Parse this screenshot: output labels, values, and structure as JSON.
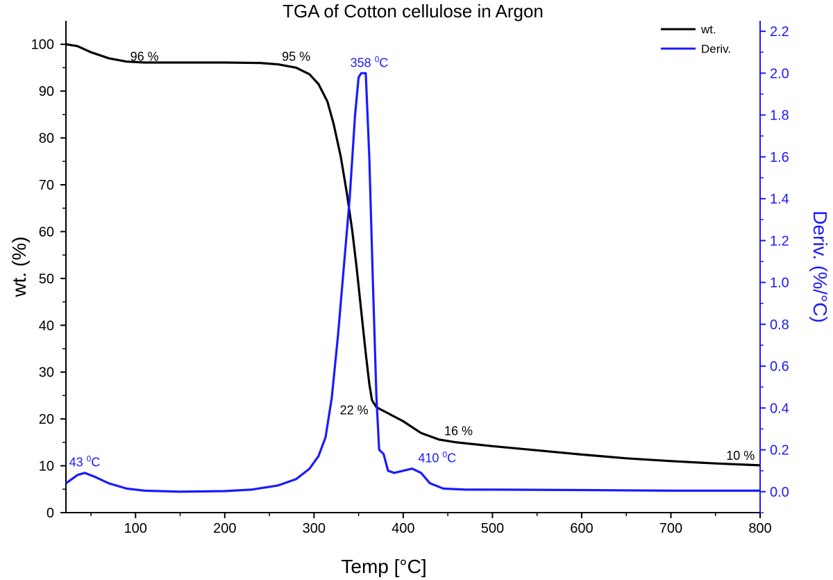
{
  "chart_data": {
    "type": "line",
    "title": "TGA of Cotton cellulose in Argon",
    "xlabel": "Temp [°C]",
    "ylabel": "wt. (%)",
    "y2label": "Deriv. (%/°C)",
    "xlim": [
      22,
      800
    ],
    "ylim": [
      0,
      105
    ],
    "y2lim": [
      -0.1,
      2.25
    ],
    "x_ticks": [
      100,
      200,
      300,
      400,
      500,
      600,
      700,
      800
    ],
    "y_ticks": [
      0,
      10,
      20,
      30,
      40,
      50,
      60,
      70,
      80,
      90,
      100
    ],
    "y2_ticks": [
      "0.0",
      "0.2",
      "0.4",
      "0.6",
      "0.8",
      "1.0",
      "1.2",
      "1.4",
      "1.6",
      "1.8",
      "2.0",
      "2.2"
    ],
    "grid": false,
    "legend_position": "top-right",
    "series": [
      {
        "name": "wt.",
        "axis": "left",
        "color": "#000000",
        "points": [
          [
            22,
            100
          ],
          [
            35,
            99.6
          ],
          [
            50,
            98.3
          ],
          [
            70,
            97
          ],
          [
            90,
            96.3
          ],
          [
            110,
            96.1
          ],
          [
            150,
            96.1
          ],
          [
            200,
            96.1
          ],
          [
            240,
            96
          ],
          [
            260,
            95.7
          ],
          [
            280,
            95
          ],
          [
            295,
            93.6
          ],
          [
            305,
            91.5
          ],
          [
            315,
            87.8
          ],
          [
            322,
            83
          ],
          [
            330,
            76
          ],
          [
            337,
            68
          ],
          [
            343,
            60
          ],
          [
            348,
            52
          ],
          [
            353,
            43
          ],
          [
            358,
            34
          ],
          [
            362,
            27.5
          ],
          [
            365,
            24
          ],
          [
            370,
            22.5
          ],
          [
            380,
            21.5
          ],
          [
            400,
            19.5
          ],
          [
            420,
            17
          ],
          [
            440,
            15.6
          ],
          [
            460,
            15
          ],
          [
            500,
            14.2
          ],
          [
            550,
            13.3
          ],
          [
            600,
            12.4
          ],
          [
            650,
            11.6
          ],
          [
            700,
            11
          ],
          [
            750,
            10.5
          ],
          [
            800,
            10.1
          ]
        ]
      },
      {
        "name": "Deriv.",
        "axis": "right",
        "color": "#1a1aff",
        "points": [
          [
            22,
            0.04
          ],
          [
            35,
            0.08
          ],
          [
            43,
            0.09
          ],
          [
            55,
            0.07
          ],
          [
            70,
            0.04
          ],
          [
            90,
            0.015
          ],
          [
            110,
            0.005
          ],
          [
            150,
            0
          ],
          [
            200,
            0.003
          ],
          [
            230,
            0.01
          ],
          [
            260,
            0.03
          ],
          [
            280,
            0.06
          ],
          [
            295,
            0.11
          ],
          [
            305,
            0.17
          ],
          [
            313,
            0.26
          ],
          [
            320,
            0.45
          ],
          [
            327,
            0.75
          ],
          [
            333,
            1.05
          ],
          [
            340,
            1.4
          ],
          [
            346,
            1.8
          ],
          [
            350,
            1.98
          ],
          [
            353,
            2.0
          ],
          [
            358,
            2.0
          ],
          [
            362,
            1.6
          ],
          [
            366,
            1.0
          ],
          [
            370,
            0.45
          ],
          [
            373,
            0.2
          ],
          [
            378,
            0.18
          ],
          [
            383,
            0.1
          ],
          [
            390,
            0.09
          ],
          [
            400,
            0.1
          ],
          [
            410,
            0.11
          ],
          [
            420,
            0.09
          ],
          [
            430,
            0.04
          ],
          [
            445,
            0.015
          ],
          [
            470,
            0.01
          ],
          [
            500,
            0.01
          ],
          [
            600,
            0.008
          ],
          [
            700,
            0.005
          ],
          [
            800,
            0.005
          ]
        ]
      }
    ],
    "annotations": [
      {
        "text": "96 %",
        "x": 110,
        "y": 96.5,
        "axis": "left",
        "color": "#000000"
      },
      {
        "text": "95 %",
        "x": 280,
        "y": 96.5,
        "axis": "left",
        "color": "#000000"
      },
      {
        "text": "22 %",
        "x": 345,
        "y": 21,
        "axis": "left",
        "color": "#000000"
      },
      {
        "text": "16 %",
        "x": 462,
        "y": 16.5,
        "axis": "left",
        "color": "#000000"
      },
      {
        "text": "10 %",
        "x": 778,
        "y": 11.3,
        "axis": "left",
        "color": "#000000"
      },
      {
        "text": "358 ",
        "sup": "0",
        "tail": "C",
        "x": 362,
        "y": 2.03,
        "axis": "right",
        "color": "#1a1aff"
      },
      {
        "text": "43 ",
        "sup": "0",
        "tail": "C",
        "x": 43,
        "y": 0.12,
        "axis": "right",
        "color": "#1a1aff"
      },
      {
        "text": "410 ",
        "sup": "0",
        "tail": "C",
        "x": 438,
        "y": 0.14,
        "axis": "right",
        "color": "#1a1aff"
      }
    ]
  }
}
